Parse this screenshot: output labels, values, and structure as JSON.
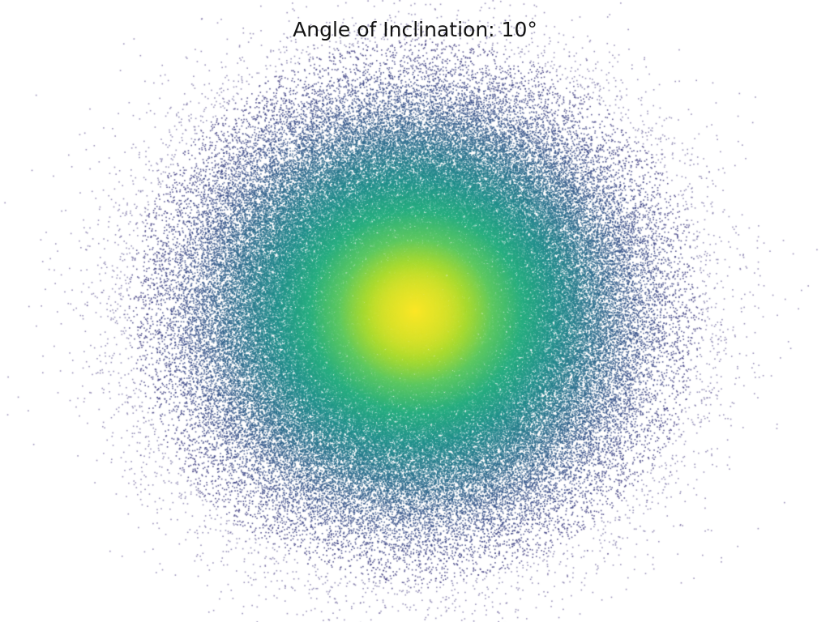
{
  "chart_data": {
    "type": "scatter",
    "title": "Angle of Inclination: 10°",
    "xlabel": "",
    "ylabel": "",
    "grid": false,
    "axes_visible": false,
    "legend": "none",
    "distribution": "gaussian",
    "point_count": 220000,
    "inclination_deg": 10,
    "colormap": "viridis",
    "colors": {
      "center": "#fde725",
      "mid": "#2eb37c",
      "outer": "#31688e",
      "edge": "#414487",
      "background": "#ffffff"
    }
  }
}
